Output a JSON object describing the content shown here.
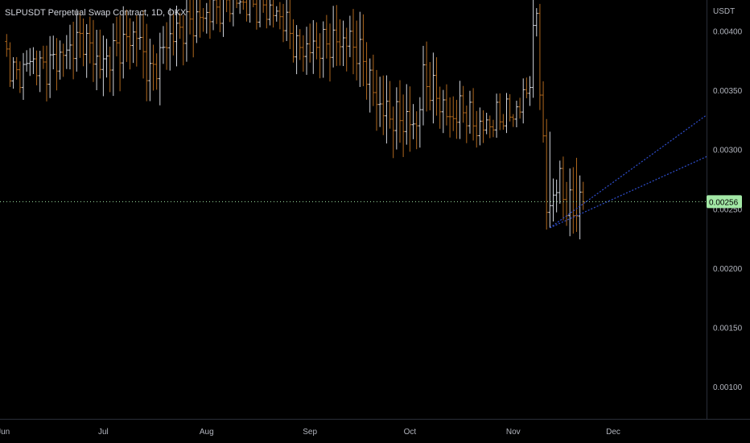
{
  "header": {
    "title": "SLPUSDT Perpetual Swap Contract, 1D, OKX"
  },
  "price_axis": {
    "unit": "USDT"
  },
  "last_price": {
    "label": "0.00256",
    "value": 0.00256
  },
  "colors": {
    "background": "#000000",
    "up_bar": "#d1d4dc",
    "down_bar": "#b0681e",
    "trendline": "#2f4fd0",
    "last_price_bg": "#a3e8a6",
    "last_price_line": "#a3e8a6",
    "axis_text": "#b2b5be"
  },
  "chart_data": {
    "type": "bar",
    "symbol": "SLPUSDT",
    "interval": "1D",
    "exchange": "OKX",
    "ylim": [
      0.00073,
      0.00426
    ],
    "y_ticks": [
      "0.00400",
      "0.00350",
      "0.00300",
      "0.00250",
      "0.00200",
      "0.00150",
      "0.00100"
    ],
    "y_tick_values": [
      0.004,
      0.0035,
      0.003,
      0.0025,
      0.002,
      0.0015,
      0.001
    ],
    "x_ticks": [
      "Jun",
      "Jul",
      "Aug",
      "Sep",
      "Oct",
      "Nov",
      "Dec"
    ],
    "month_start_day_index": [
      0,
      30,
      61,
      92,
      122,
      153,
      183
    ],
    "x_range_days": [
      -1,
      211
    ],
    "ohlc_waypoints": [
      {
        "d": 0,
        "c": 0.00385
      },
      {
        "d": 4,
        "c": 0.0036
      },
      {
        "d": 8,
        "c": 0.00375
      },
      {
        "d": 12,
        "c": 0.00368
      },
      {
        "d": 18,
        "c": 0.0038
      },
      {
        "d": 24,
        "c": 0.00395
      },
      {
        "d": 29,
        "c": 0.0037
      },
      {
        "d": 34,
        "c": 0.00385
      },
      {
        "d": 40,
        "c": 0.00398
      },
      {
        "d": 44,
        "c": 0.00362
      },
      {
        "d": 50,
        "c": 0.00395
      },
      {
        "d": 55,
        "c": 0.00405
      },
      {
        "d": 60,
        "c": 0.00412
      },
      {
        "d": 68,
        "c": 0.00425
      },
      {
        "d": 78,
        "c": 0.0042
      },
      {
        "d": 84,
        "c": 0.0041
      },
      {
        "d": 88,
        "c": 0.00385
      },
      {
        "d": 92,
        "c": 0.00385
      },
      {
        "d": 98,
        "c": 0.0039
      },
      {
        "d": 104,
        "c": 0.00392
      },
      {
        "d": 108,
        "c": 0.00375
      },
      {
        "d": 112,
        "c": 0.0034
      },
      {
        "d": 116,
        "c": 0.00328
      },
      {
        "d": 120,
        "c": 0.00325
      },
      {
        "d": 124,
        "c": 0.0032
      },
      {
        "d": 126,
        "c": 0.0036
      },
      {
        "d": 130,
        "c": 0.00345
      },
      {
        "d": 134,
        "c": 0.00325
      },
      {
        "d": 138,
        "c": 0.00335
      },
      {
        "d": 142,
        "c": 0.00318
      },
      {
        "d": 145,
        "c": 0.0032
      },
      {
        "d": 150,
        "c": 0.0033
      },
      {
        "d": 153,
        "c": 0.0033
      },
      {
        "d": 155,
        "c": 0.00335
      },
      {
        "d": 158,
        "c": 0.0036
      },
      {
        "d": 160,
        "c": 0.0042
      },
      {
        "d": 161,
        "c": 0.00355
      },
      {
        "d": 162,
        "c": 0.003
      },
      {
        "d": 163,
        "c": 0.0025
      },
      {
        "d": 165,
        "c": 0.0026
      },
      {
        "d": 167,
        "c": 0.00275
      },
      {
        "d": 169,
        "c": 0.00252
      },
      {
        "d": 171,
        "c": 0.0025
      },
      {
        "d": 174,
        "c": 0.00256
      }
    ],
    "trendlines": [
      {
        "from": {
          "d": 164,
          "v": 0.00234
        },
        "to": {
          "d": 211,
          "v": 0.00329
        }
      },
      {
        "from": {
          "d": 164,
          "v": 0.00234
        },
        "to": {
          "d": 211,
          "v": 0.00294
        }
      }
    ]
  }
}
